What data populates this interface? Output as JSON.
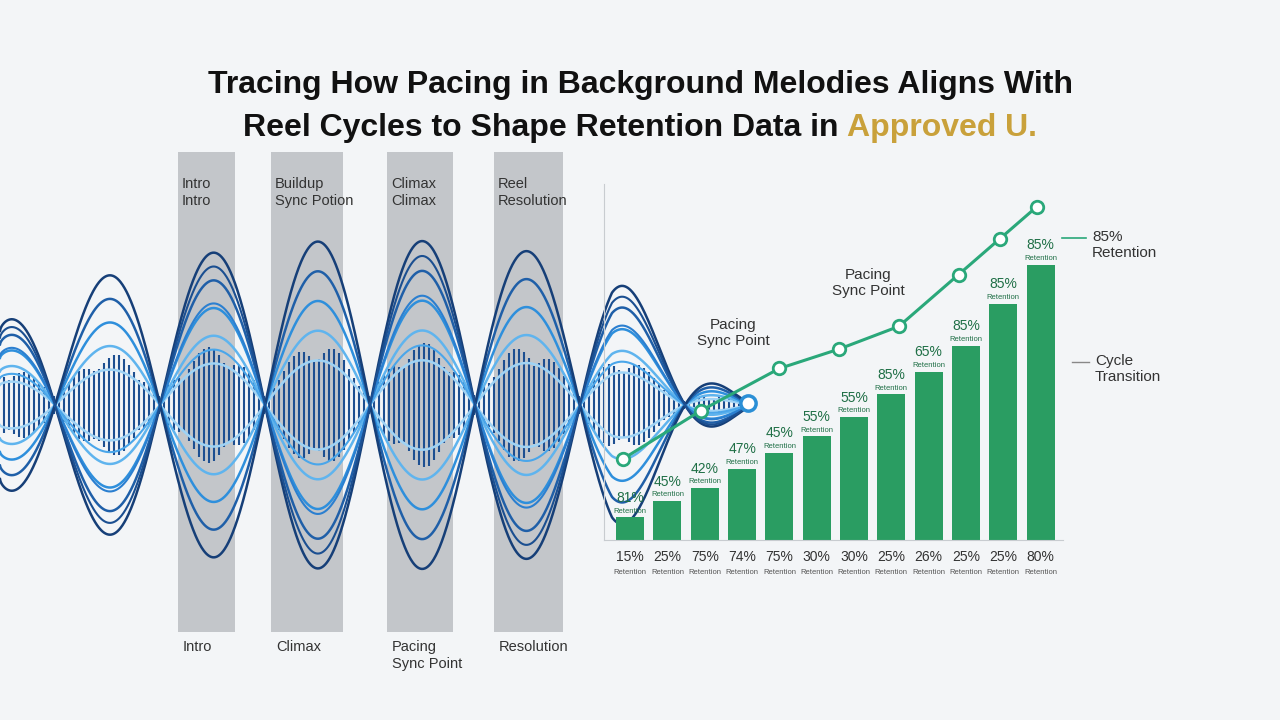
{
  "chart_data": {
    "type": "bar",
    "title": [
      "Tracing How Pacing in Background Melodies Aligns With",
      "Reel Cycles to Shape Retention Data in"
    ],
    "title_highlight": "Approved U.",
    "sections": {
      "top": [
        "Intro\nIntro",
        "Buildup\nSync Potion",
        "Climax\nClimax",
        "Reel\nResolution"
      ],
      "bottom": [
        "Intro",
        "Climax",
        "Pacing\nSync Point",
        "Resolution"
      ]
    },
    "categories": [
      null,
      null,
      null,
      null,
      null,
      null,
      null,
      null,
      null,
      null,
      null,
      null
    ],
    "values": [
      7,
      12,
      16,
      22,
      27,
      32,
      38,
      45,
      52,
      60,
      73,
      85
    ],
    "color": "#2a9d62",
    "ylim": [
      0,
      110
    ],
    "yticks": [],
    "tick_labels": false,
    "top_labels": [
      "81%",
      "45%",
      "42%",
      "47%",
      "45%",
      "55%",
      "55%",
      "85%",
      "65%",
      "85%",
      "85%",
      "85%"
    ],
    "bottom_labels": [
      "15%",
      "25%",
      "75%",
      "74%",
      "75%",
      "30%",
      "30%",
      "25%",
      "26%",
      "25%",
      "25%",
      "80%"
    ],
    "label_caption": "Retention",
    "line": {
      "type": "line",
      "x": [
        -0.2,
        1.9,
        4.0,
        5.6,
        7.2,
        8.8,
        9.9,
        10.9
      ],
      "values": [
        25,
        40,
        53,
        59,
        66,
        82,
        93,
        103
      ],
      "color": "#2aa87a",
      "marker": "o"
    },
    "annotations": [
      "Pacing\nSync Point",
      "Pacing\nSync Point",
      "85%\nRetention",
      "Cycle\nTransition"
    ]
  }
}
